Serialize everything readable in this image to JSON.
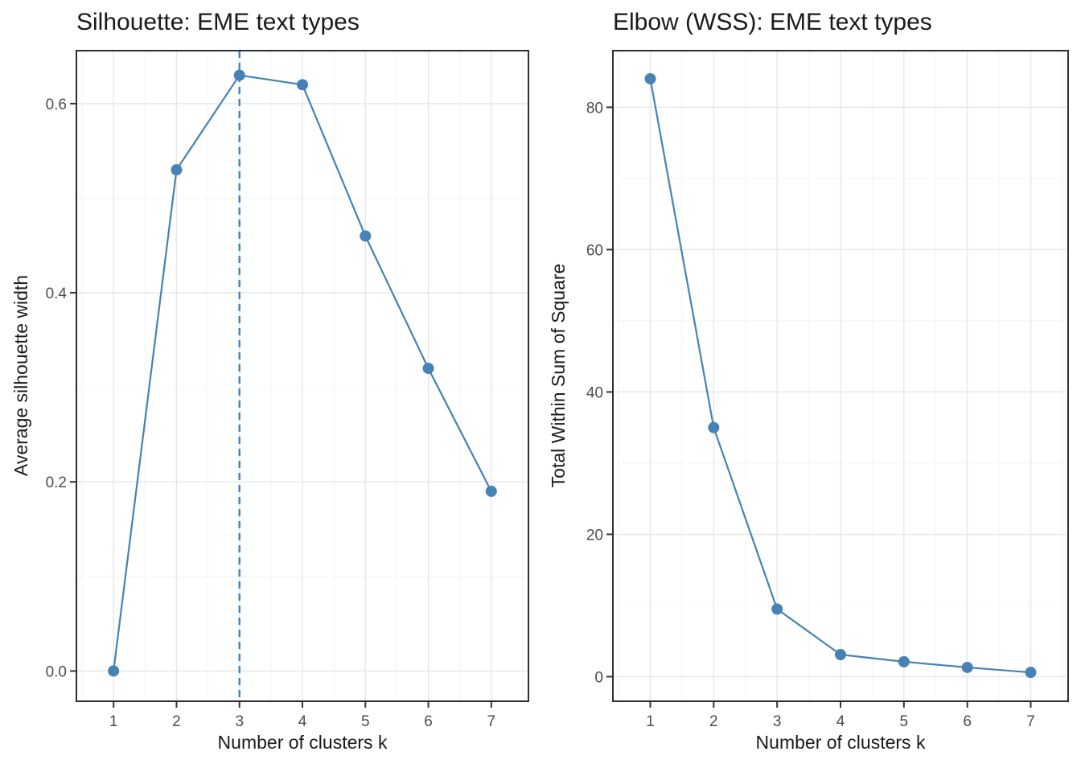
{
  "style": {
    "accent": "#4682B4",
    "panel_bg": "#ffffff",
    "grid_major": "#e8e8e8",
    "grid_minor": "#f4f4f4",
    "panel_border": "#2f2f2f",
    "tick_mark_color": "#333333",
    "tick_label_color": "#4d4d4d",
    "title_color": "#1a1a1a",
    "background": "#ffffff"
  },
  "chart_data": [
    {
      "id": "silhouette",
      "type": "line",
      "title": "Silhouette: EME text types",
      "xlabel": "Number of clusters k",
      "ylabel": "Average silhouette width",
      "x": [
        1,
        2,
        3,
        4,
        5,
        6,
        7
      ],
      "values": [
        0.0,
        0.53,
        0.63,
        0.62,
        0.46,
        0.32,
        0.19
      ],
      "vline": 3,
      "vline_style": "dashed",
      "xlim": [
        0.41,
        7.59
      ],
      "ylim": [
        -0.032,
        0.656
      ],
      "xticks": [
        1,
        2,
        3,
        4,
        5,
        6,
        7
      ],
      "xtick_labels": [
        "1",
        "2",
        "3",
        "4",
        "5",
        "6",
        "7"
      ],
      "ytick_values": [
        0.0,
        0.2,
        0.4,
        0.6
      ],
      "ytick_labels": [
        "0.0",
        "0.2",
        "0.4",
        "0.6"
      ],
      "xticks_minor": [
        0.5,
        1.5,
        2.5,
        3.5,
        4.5,
        5.5,
        6.5,
        7.5
      ],
      "yticks_minor": [
        0.1,
        0.3,
        0.5
      ],
      "grid": true,
      "legend": "none"
    },
    {
      "id": "elbow",
      "type": "line",
      "title": "Elbow (WSS): EME text types",
      "xlabel": "Number of clusters k",
      "ylabel": "Total Within Sum of Square",
      "x": [
        1,
        2,
        3,
        4,
        5,
        6,
        7
      ],
      "values": [
        84,
        35,
        9.5,
        3.1,
        2.1,
        1.3,
        0.6
      ],
      "vline": null,
      "xlim": [
        0.41,
        7.59
      ],
      "ylim": [
        -3.45,
        87.95
      ],
      "xticks": [
        1,
        2,
        3,
        4,
        5,
        6,
        7
      ],
      "xtick_labels": [
        "1",
        "2",
        "3",
        "4",
        "5",
        "6",
        "7"
      ],
      "ytick_values": [
        0,
        20,
        40,
        60,
        80
      ],
      "ytick_labels": [
        "0",
        "20",
        "40",
        "60",
        "80"
      ],
      "xticks_minor": [
        0.5,
        1.5,
        2.5,
        3.5,
        4.5,
        5.5,
        6.5,
        7.5
      ],
      "yticks_minor": [
        10,
        30,
        50,
        70
      ],
      "grid": true,
      "legend": "none"
    }
  ]
}
